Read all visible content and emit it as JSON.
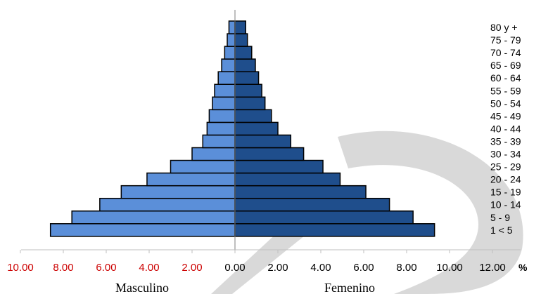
{
  "chart_data": {
    "type": "bar",
    "orientation": "horizontal-pyramid",
    "categories": [
      "1 < 5",
      "5 - 9",
      "10 - 14",
      "15 - 19",
      "20 - 24",
      "25 - 29",
      "30 - 34",
      "35 - 39",
      "40 - 44",
      "45 - 49",
      "50 - 54",
      "55 - 59",
      "60 - 64",
      "65 - 69",
      "70 - 74",
      "75 - 79",
      "80 y +"
    ],
    "series": [
      {
        "name": "Masculino",
        "side": "left",
        "color": "#5b8fd9",
        "values": [
          8.6,
          7.6,
          6.3,
          5.3,
          4.1,
          3.0,
          2.0,
          1.5,
          1.3,
          1.2,
          1.05,
          0.95,
          0.78,
          0.62,
          0.48,
          0.36,
          0.28
        ]
      },
      {
        "name": "Femenino",
        "side": "right",
        "color": "#1f4e8c",
        "values": [
          9.3,
          8.3,
          7.2,
          6.1,
          4.9,
          4.1,
          3.2,
          2.6,
          2.0,
          1.7,
          1.4,
          1.25,
          1.1,
          0.95,
          0.78,
          0.58,
          0.5
        ]
      }
    ],
    "x_axis": {
      "left_tick_labels": [
        "10.00",
        "8.00",
        "6.00",
        "4.00",
        "2.00"
      ],
      "right_tick_labels": [
        "0.00",
        "2.00",
        "4.00",
        "6.00",
        "8.00",
        "10.00",
        "12.00"
      ],
      "unit_label": "%",
      "left_tick_color": "#cc0000",
      "range_left": [
        10,
        0
      ],
      "range_right": [
        0,
        12
      ]
    },
    "side_labels": {
      "left": "Masculino",
      "right": "Femenino"
    },
    "grid": false,
    "watermark_color": "#d9d9d9"
  }
}
